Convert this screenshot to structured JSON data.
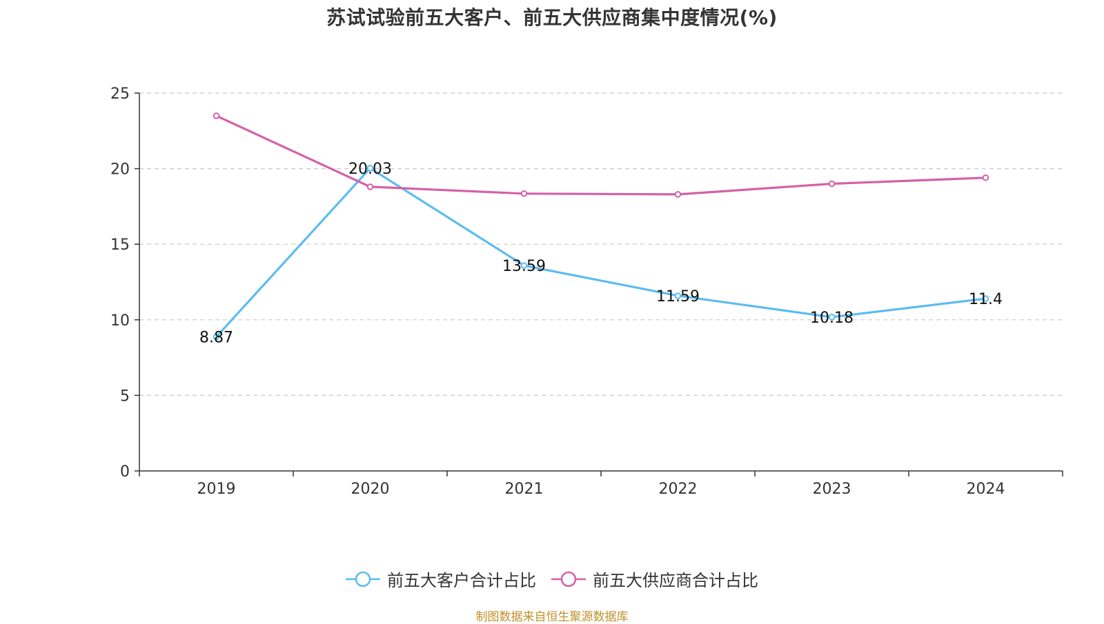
{
  "chart_data": {
    "type": "line",
    "title": "苏试试验前五大客户、前五大供应商集中度情况(%)",
    "categories": [
      "2019",
      "2020",
      "2021",
      "2022",
      "2023",
      "2024"
    ],
    "ylim": [
      0,
      25
    ],
    "yticks": [
      0,
      5,
      10,
      15,
      20,
      25
    ],
    "grid": true,
    "legend_position": "bottom",
    "series": [
      {
        "name": "前五大客户合计占比",
        "color": "#5bbcf0",
        "values": [
          8.87,
          20.03,
          13.59,
          11.59,
          10.18,
          11.4
        ],
        "labels": [
          "8.87",
          "20.03",
          "13.59",
          "11.59",
          "10.18",
          "11.4"
        ],
        "show_labels": true
      },
      {
        "name": "前五大供应商合计占比",
        "color": "#d560a8",
        "values": [
          23.5,
          18.8,
          18.35,
          18.3,
          19.0,
          19.4
        ],
        "show_labels": false
      }
    ]
  },
  "footer": {
    "source": "制图数据来自恒生聚源数据库"
  }
}
